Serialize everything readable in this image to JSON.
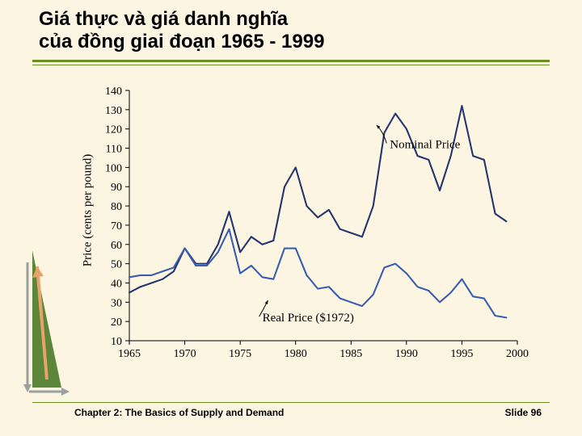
{
  "title": {
    "line1": "Giá thực và giá danh nghĩa",
    "line2": "của đồng giai đoạn 1965 - 1999",
    "fontsize": 24,
    "color": "#000000",
    "rule_color": "#6b8e23",
    "rule_top_y": 74,
    "rule2_y": 80
  },
  "footer": {
    "left": "Chapter 2: The Basics of Supply and Demand",
    "right": "Slide 96",
    "fontsize": 12,
    "rule_color": "#6b8e23"
  },
  "background_color": "#fbf5e2",
  "chart": {
    "type": "line",
    "xlim": [
      1965,
      2000
    ],
    "ylim": [
      10,
      140
    ],
    "xtick_step": 5,
    "ytick_step": 10,
    "xlabel": "",
    "ylabel": "Price (cents per pound)",
    "label_fontsize": 15,
    "tick_fontsize": 14,
    "axis_color": "#000000",
    "background_color": "#fbf5e2",
    "line_width": 2.1,
    "series": [
      {
        "name": "Nominal Price",
        "label_anchor": [
          1988.5,
          110
        ],
        "arrow_to": [
          1987.3,
          122
        ],
        "color": "#24366f",
        "x": [
          1965,
          1966,
          1967,
          1968,
          1969,
          1970,
          1971,
          1972,
          1973,
          1974,
          1975,
          1976,
          1977,
          1978,
          1979,
          1980,
          1981,
          1982,
          1983,
          1984,
          1985,
          1986,
          1987,
          1988,
          1989,
          1990,
          1991,
          1992,
          1993,
          1994,
          1995,
          1996,
          1997,
          1998,
          1999
        ],
        "y": [
          35,
          38,
          40,
          42,
          46,
          58,
          50,
          50,
          60,
          77,
          56,
          64,
          60,
          62,
          90,
          100,
          80,
          74,
          78,
          68,
          66,
          64,
          80,
          118,
          128,
          120,
          106,
          104,
          88,
          106,
          132,
          106,
          104,
          76,
          72
        ]
      },
      {
        "name": "Real Price ($1972)",
        "label_anchor": [
          1977,
          20
        ],
        "arrow_to": [
          1977.5,
          31
        ],
        "color": "#3a5db0",
        "x": [
          1965,
          1966,
          1967,
          1968,
          1969,
          1970,
          1971,
          1972,
          1973,
          1974,
          1975,
          1976,
          1977,
          1978,
          1979,
          1980,
          1981,
          1982,
          1983,
          1984,
          1985,
          1986,
          1987,
          1988,
          1989,
          1990,
          1991,
          1992,
          1993,
          1994,
          1995,
          1996,
          1997,
          1998,
          1999
        ],
        "y": [
          43,
          44,
          44,
          46,
          48,
          58,
          49,
          49,
          56,
          68,
          45,
          49,
          43,
          42,
          58,
          58,
          44,
          37,
          38,
          32,
          30,
          28,
          34,
          48,
          50,
          45,
          38,
          36,
          30,
          35,
          42,
          33,
          32,
          23,
          22
        ]
      }
    ]
  },
  "decoration": {
    "colors": {
      "triangle": "#4a7a28",
      "arrow1": "#e8a36a",
      "arrow2": "#9aa0a0",
      "arrow3": "#9aa0a0"
    }
  }
}
